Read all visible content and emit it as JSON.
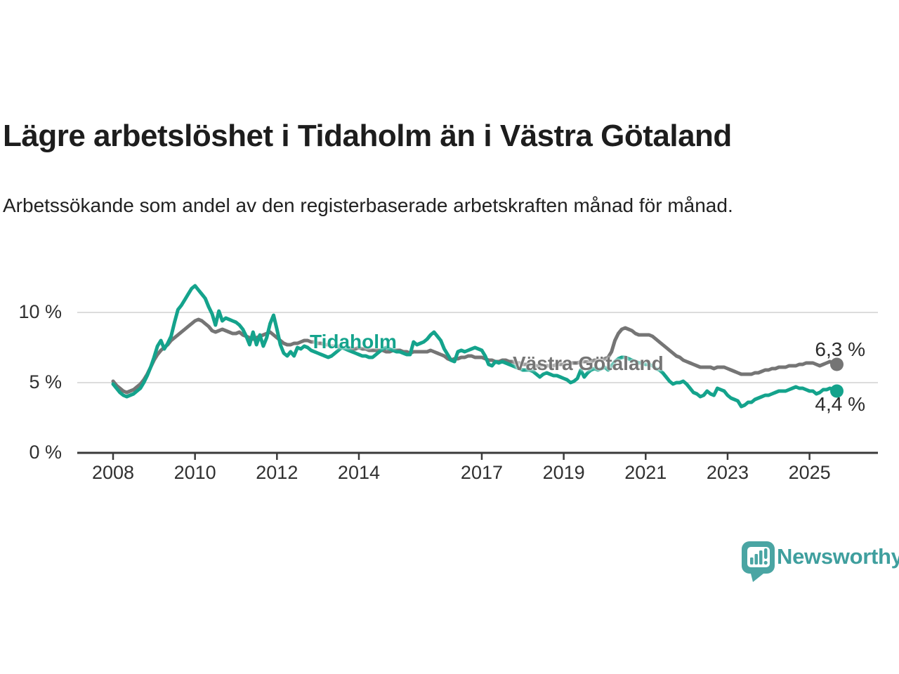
{
  "header": {
    "title": "Lägre arbetslöshet i Tidaholm än i Västra Götaland",
    "subtitle": "Arbetssökande som andel av den registerbaserade arbetskraften månad för månad."
  },
  "chart": {
    "y_axis": {
      "ticks": [
        {
          "value": 0,
          "label": "0 %"
        },
        {
          "value": 5,
          "label": "5 %"
        },
        {
          "value": 10,
          "label": "10 %"
        }
      ]
    },
    "x_axis": {
      "ticks": [
        {
          "year": 2008,
          "label": "2008"
        },
        {
          "year": 2010,
          "label": "2010"
        },
        {
          "year": 2012,
          "label": "2012"
        },
        {
          "year": 2014,
          "label": "2014"
        },
        {
          "year": 2017,
          "label": "2017"
        },
        {
          "year": 2019,
          "label": "2019"
        },
        {
          "year": 2021,
          "label": "2021"
        },
        {
          "year": 2023,
          "label": "2023"
        },
        {
          "year": 2025,
          "label": "2025"
        }
      ]
    },
    "series_labels": {
      "tidaholm": "Tidaholm",
      "vastra_gotaland": "Västra Götaland"
    },
    "end_labels": {
      "tidaholm": "4,4 %",
      "vastra_gotaland": "6,3 %"
    },
    "colors": {
      "tidaholm": "#14a38c",
      "vastra_gotaland": "#757575",
      "grid": "#dcdcdc",
      "axis": "#3a3a3a"
    }
  },
  "chart_data": {
    "type": "line",
    "title": "Lägre arbetslöshet i Tidaholm än i Västra Götaland",
    "x_start": "2008-01",
    "x_end": "2025-09",
    "frequency": "monthly",
    "ylabel": "Arbetssökande som andel av den registerbaserade arbetskraften",
    "ylim": [
      0,
      12.5
    ],
    "yticks": [
      0,
      5,
      10
    ],
    "xticks": [
      2008,
      2010,
      2012,
      2014,
      2017,
      2019,
      2021,
      2023,
      2025
    ],
    "grid": "horizontal",
    "legend_position": "inline-labels",
    "latest_values": {
      "Tidaholm": 4.4,
      "Västra Götaland": 6.3
    },
    "series": [
      {
        "name": "Västra Götaland",
        "color": "#757575",
        "values": [
          5.1,
          4.8,
          4.6,
          4.4,
          4.3,
          4.4,
          4.5,
          4.7,
          4.9,
          5.2,
          5.6,
          6.1,
          6.6,
          7.0,
          7.3,
          7.5,
          7.7,
          8.0,
          8.2,
          8.4,
          8.6,
          8.8,
          9.0,
          9.2,
          9.4,
          9.5,
          9.4,
          9.2,
          9.0,
          8.7,
          8.6,
          8.7,
          8.8,
          8.7,
          8.6,
          8.5,
          8.5,
          8.6,
          8.4,
          8.3,
          8.2,
          8.1,
          8.2,
          8.3,
          8.4,
          8.5,
          8.6,
          8.4,
          8.2,
          8.0,
          7.8,
          7.7,
          7.7,
          7.8,
          7.8,
          7.9,
          8.0,
          8.0,
          7.9,
          7.9,
          7.8,
          7.8,
          7.7,
          7.7,
          7.6,
          7.6,
          7.6,
          7.5,
          7.5,
          7.5,
          7.4,
          7.4,
          7.5,
          7.4,
          7.4,
          7.3,
          7.3,
          7.3,
          7.3,
          7.3,
          7.2,
          7.2,
          7.3,
          7.3,
          7.3,
          7.2,
          7.2,
          7.1,
          7.2,
          7.2,
          7.2,
          7.2,
          7.2,
          7.3,
          7.2,
          7.1,
          7.0,
          6.9,
          6.7,
          6.6,
          6.7,
          6.7,
          6.8,
          6.8,
          6.9,
          6.9,
          6.8,
          6.8,
          6.8,
          6.7,
          6.6,
          6.6,
          6.5,
          6.5,
          6.6,
          6.6,
          6.5,
          6.5,
          6.4,
          6.4,
          6.3,
          6.3,
          6.3,
          6.2,
          6.2,
          6.2,
          6.2,
          6.2,
          6.2,
          6.2,
          6.3,
          6.3,
          6.3,
          6.3,
          6.4,
          6.4,
          6.4,
          6.5,
          6.5,
          6.5,
          6.5,
          6.6,
          6.6,
          6.6,
          6.7,
          6.8,
          7.2,
          8.0,
          8.5,
          8.8,
          8.9,
          8.8,
          8.7,
          8.5,
          8.4,
          8.4,
          8.4,
          8.4,
          8.3,
          8.1,
          7.9,
          7.7,
          7.5,
          7.3,
          7.1,
          6.9,
          6.8,
          6.6,
          6.5,
          6.4,
          6.3,
          6.2,
          6.1,
          6.1,
          6.1,
          6.1,
          6.0,
          6.1,
          6.1,
          6.1,
          6.0,
          5.9,
          5.8,
          5.7,
          5.6,
          5.6,
          5.6,
          5.6,
          5.7,
          5.7,
          5.8,
          5.9,
          5.9,
          6.0,
          6.0,
          6.1,
          6.1,
          6.1,
          6.2,
          6.2,
          6.2,
          6.3,
          6.3,
          6.4,
          6.4,
          6.4,
          6.3,
          6.2,
          6.3,
          6.4,
          6.5,
          6.4,
          6.3
        ]
      },
      {
        "name": "Tidaholm",
        "color": "#14a38c",
        "values": [
          4.9,
          4.6,
          4.3,
          4.1,
          4.0,
          4.1,
          4.2,
          4.4,
          4.6,
          5.0,
          5.5,
          6.1,
          6.8,
          7.6,
          8.0,
          7.4,
          7.8,
          8.3,
          9.3,
          10.2,
          10.5,
          10.9,
          11.3,
          11.7,
          11.9,
          11.6,
          11.3,
          11.0,
          10.4,
          9.9,
          9.1,
          10.1,
          9.4,
          9.6,
          9.5,
          9.4,
          9.3,
          9.1,
          8.8,
          8.3,
          7.7,
          8.6,
          7.7,
          8.4,
          7.6,
          8.2,
          9.2,
          9.8,
          8.8,
          7.7,
          7.1,
          6.9,
          7.2,
          6.9,
          7.5,
          7.4,
          7.6,
          7.5,
          7.3,
          7.2,
          7.1,
          7.0,
          6.9,
          6.8,
          6.9,
          7.1,
          7.3,
          7.5,
          7.4,
          7.3,
          7.2,
          7.1,
          7.0,
          6.9,
          6.9,
          6.8,
          6.8,
          7.0,
          7.2,
          7.4,
          7.5,
          7.4,
          7.3,
          7.2,
          7.2,
          7.1,
          7.0,
          7.0,
          7.9,
          7.7,
          7.8,
          7.9,
          8.1,
          8.4,
          8.6,
          8.3,
          8.0,
          7.4,
          7.0,
          6.6,
          6.5,
          7.2,
          7.3,
          7.2,
          7.3,
          7.4,
          7.5,
          7.4,
          7.3,
          6.9,
          6.3,
          6.2,
          6.5,
          6.4,
          6.5,
          6.4,
          6.3,
          6.2,
          6.1,
          6.0,
          5.9,
          5.9,
          5.9,
          5.8,
          5.6,
          5.4,
          5.6,
          5.7,
          5.6,
          5.5,
          5.5,
          5.4,
          5.3,
          5.2,
          5.0,
          5.1,
          5.3,
          5.9,
          5.4,
          5.7,
          5.9,
          6.0,
          5.9,
          6.0,
          6.1,
          5.9,
          6.2,
          6.5,
          6.7,
          6.8,
          6.8,
          6.7,
          6.6,
          6.5,
          6.4,
          6.4,
          6.3,
          6.3,
          6.2,
          6.0,
          5.9,
          5.7,
          5.4,
          5.1,
          4.9,
          5.0,
          5.0,
          5.1,
          4.9,
          4.6,
          4.3,
          4.2,
          4.0,
          4.1,
          4.4,
          4.2,
          4.1,
          4.6,
          4.5,
          4.4,
          4.1,
          3.9,
          3.8,
          3.7,
          3.3,
          3.4,
          3.6,
          3.6,
          3.8,
          3.9,
          4.0,
          4.1,
          4.1,
          4.2,
          4.3,
          4.4,
          4.4,
          4.4,
          4.5,
          4.6,
          4.7,
          4.6,
          4.6,
          4.5,
          4.4,
          4.4,
          4.2,
          4.3,
          4.5,
          4.5,
          4.6,
          4.5,
          4.4
        ]
      }
    ]
  },
  "footer": {
    "brand": "Newsworthy"
  }
}
